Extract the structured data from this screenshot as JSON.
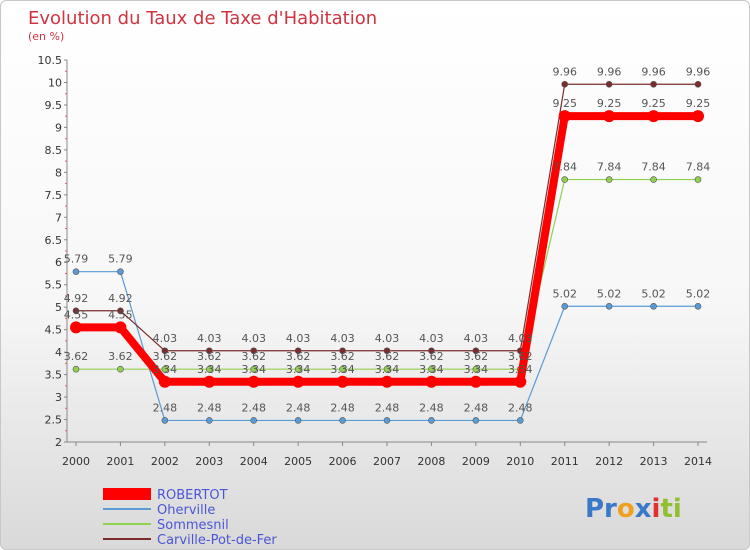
{
  "chart_data": {
    "type": "line",
    "title": "Evolution du Taux de Taxe d'Habitation",
    "subtitle": "(en %)",
    "xlabel": "",
    "ylabel": "",
    "x": [
      "2000",
      "2001",
      "2002",
      "2003",
      "2004",
      "2005",
      "2006",
      "2007",
      "2008",
      "2009",
      "2010",
      "2011",
      "2012",
      "2013",
      "2014"
    ],
    "ylim": [
      2,
      10.5
    ],
    "yticks": [
      "2",
      "2.5",
      "3",
      "3.5",
      "4",
      "4.5",
      "5",
      "5.5",
      "6",
      "6.5",
      "7",
      "7.5",
      "8",
      "8.5",
      "9",
      "9.5",
      "10",
      "10.5"
    ],
    "grid": false,
    "legend_position": "bottom-left",
    "series": [
      {
        "name": "ROBERTOT",
        "color": "#ff0000",
        "values": [
          4.55,
          4.55,
          3.34,
          3.34,
          3.34,
          3.34,
          3.34,
          3.34,
          3.34,
          3.34,
          3.34,
          9.25,
          9.25,
          9.25,
          9.25
        ],
        "labels": [
          "4.55",
          "4.55",
          "3.34",
          "3.34",
          "3.34",
          "3.34",
          "3.34",
          "3.34",
          "3.34",
          "3.34",
          "3.34",
          "9.25",
          "9.25",
          "9.25",
          "9.25"
        ]
      },
      {
        "name": "Oherville",
        "color": "#5b9bd5",
        "values": [
          5.79,
          5.79,
          2.48,
          2.48,
          2.48,
          2.48,
          2.48,
          2.48,
          2.48,
          2.48,
          2.48,
          5.02,
          5.02,
          5.02,
          5.02
        ],
        "labels": [
          "5.79",
          "5.79",
          "2.48",
          "2.48",
          "2.48",
          "2.48",
          "2.48",
          "2.48",
          "2.48",
          "2.48",
          "2.48",
          "5.02",
          "5.02",
          "5.02",
          "5.02"
        ]
      },
      {
        "name": "Sommesnil",
        "color": "#90d050",
        "values": [
          3.62,
          3.62,
          3.62,
          3.62,
          3.62,
          3.62,
          3.62,
          3.62,
          3.62,
          3.62,
          3.62,
          7.84,
          7.84,
          7.84,
          7.84
        ],
        "labels": [
          "3.62",
          "3.62",
          "3.62",
          "3.62",
          "3.62",
          "3.62",
          "3.62",
          "3.62",
          "3.62",
          "3.62",
          "3.62",
          "7.84",
          "7.84",
          "7.84",
          "7.84"
        ]
      },
      {
        "name": "Carville-Pot-de-Fer",
        "color": "#7b2c2c",
        "values": [
          4.92,
          4.92,
          4.03,
          4.03,
          4.03,
          4.03,
          4.03,
          4.03,
          4.03,
          4.03,
          4.03,
          9.96,
          9.96,
          9.96,
          9.96
        ],
        "labels": [
          "4.92",
          "4.92",
          "4.03",
          "4.03",
          "4.03",
          "4.03",
          "4.03",
          "4.03",
          "4.03",
          "4.03",
          "4.03",
          "9.96",
          "9.96",
          "9.96",
          "9.96"
        ]
      }
    ]
  },
  "logo": {
    "parts": [
      "Pr",
      "o",
      "x",
      "i",
      "ti"
    ],
    "colors": [
      "#3a78c8",
      "#f0a020",
      "#3a78c8",
      "#e03030",
      "#90c030"
    ]
  }
}
